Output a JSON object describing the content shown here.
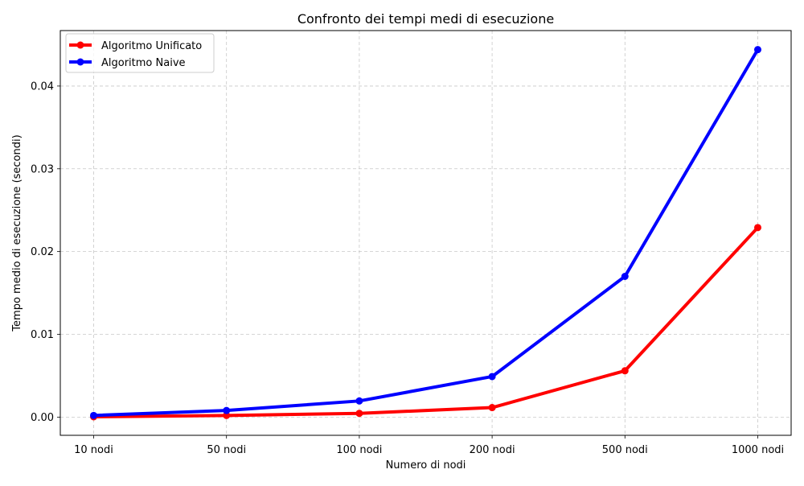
{
  "chart_data": {
    "type": "line",
    "title": "Confronto dei tempi medi di esecuzione",
    "xlabel": "Numero di nodi",
    "ylabel": "Tempo medio di esecuzione (secondi)",
    "categories": [
      "10 nodi",
      "50 nodi",
      "100 nodi",
      "200 nodi",
      "500 nodi",
      "1000 nodi"
    ],
    "ylim": [
      -0.0022,
      0.0467
    ],
    "yticks": [
      0.0,
      0.01,
      0.02,
      0.03,
      0.04
    ],
    "ytick_labels": [
      "0.00",
      "0.01",
      "0.02",
      "0.03",
      "0.04"
    ],
    "grid": true,
    "legend_position": "top-left",
    "series": [
      {
        "name": "Algoritmo Unificato",
        "color": "#ff0000",
        "values": [
          4e-05,
          0.0002,
          0.00045,
          0.00115,
          0.0056,
          0.0229
        ]
      },
      {
        "name": "Algoritmo Naive",
        "color": "#0000ff",
        "values": [
          0.0002,
          0.0008,
          0.00195,
          0.0049,
          0.017,
          0.0444
        ]
      }
    ]
  }
}
